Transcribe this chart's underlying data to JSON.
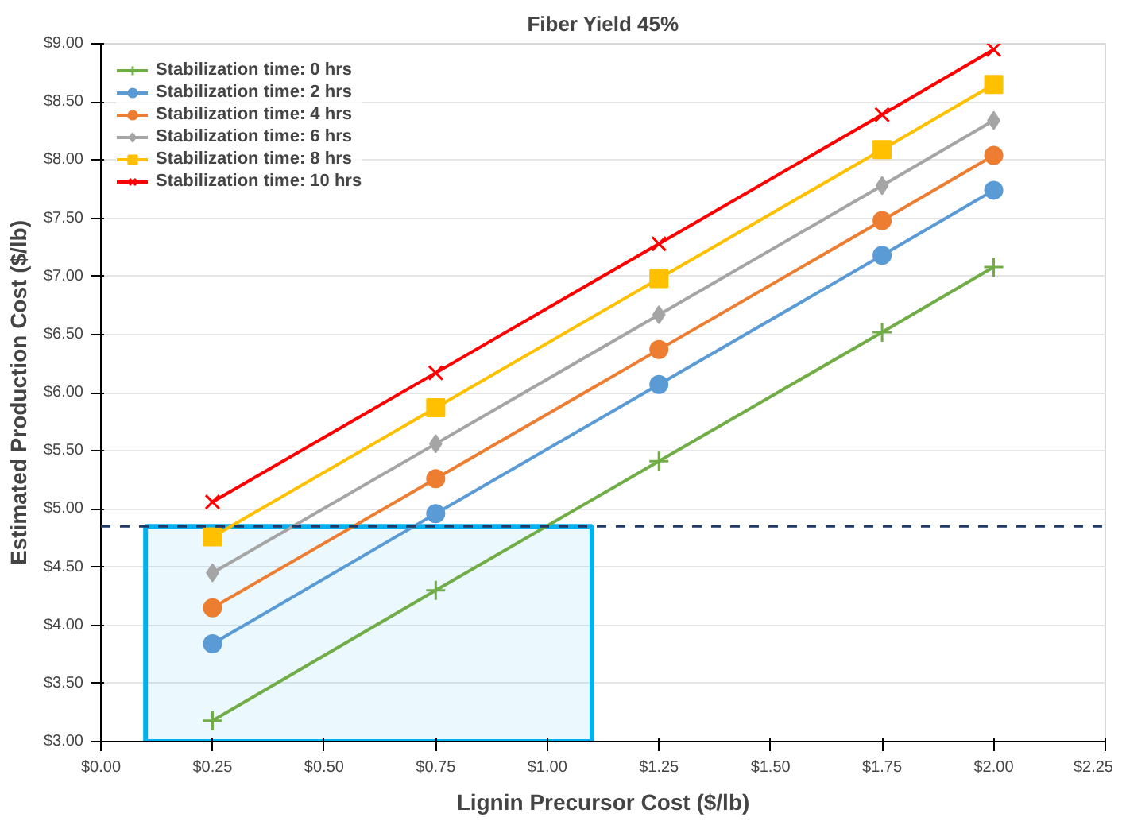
{
  "chart_data": {
    "type": "line",
    "title": "Fiber Yield 45%",
    "xlabel": "Lignin Precursor Cost ($/lb)",
    "ylabel": "Estimated Production Cost ($/lb)",
    "x": [
      0.25,
      0.75,
      1.25,
      1.75,
      2.0
    ],
    "series": [
      {
        "name": "Stabilization time: 0 hrs",
        "color": "#70ad47",
        "marker": "cross",
        "values": [
          3.18,
          4.3,
          5.41,
          6.52,
          7.08
        ]
      },
      {
        "name": "Stabilization time: 2 hrs",
        "color": "#5b9bd5",
        "marker": "circle",
        "values": [
          3.84,
          4.96,
          6.07,
          7.18,
          7.74
        ]
      },
      {
        "name": "Stabilization time: 4 hrs",
        "color": "#ed7d31",
        "marker": "circle",
        "values": [
          4.15,
          5.26,
          6.37,
          7.48,
          8.04
        ]
      },
      {
        "name": "Stabilization time: 6 hrs",
        "color": "#a5a5a5",
        "marker": "diamond",
        "values": [
          4.45,
          5.56,
          6.67,
          7.78,
          8.34
        ]
      },
      {
        "name": "Stabilization time: 8 hrs",
        "color": "#ffc000",
        "marker": "square",
        "values": [
          4.76,
          5.87,
          6.98,
          8.09,
          8.65
        ]
      },
      {
        "name": "Stabilization time: 10 hrs",
        "color": "#ff0000",
        "marker": "x",
        "values": [
          5.06,
          6.17,
          7.28,
          8.39,
          8.95
        ]
      }
    ],
    "xlim": [
      0,
      2.25
    ],
    "ylim": [
      3,
      9
    ],
    "xticks": [
      {
        "value": 0,
        "label": "$0.00"
      },
      {
        "value": 0.25,
        "label": "$0.25"
      },
      {
        "value": 0.5,
        "label": "$0.50"
      },
      {
        "value": 0.75,
        "label": "$0.75"
      },
      {
        "value": 1.0,
        "label": "$1.00"
      },
      {
        "value": 1.25,
        "label": "$1.25"
      },
      {
        "value": 1.5,
        "label": "$1.50"
      },
      {
        "value": 1.75,
        "label": "$1.75"
      },
      {
        "value": 2.0,
        "label": "$2.00"
      },
      {
        "value": 2.25,
        "label": "$2.25"
      }
    ],
    "yticks": [
      {
        "value": 3,
        "label": "$3.00"
      },
      {
        "value": 3.5,
        "label": "$3.50"
      },
      {
        "value": 4,
        "label": "$4.00"
      },
      {
        "value": 4.5,
        "label": "$4.50"
      },
      {
        "value": 5,
        "label": "$5.00"
      },
      {
        "value": 5.5,
        "label": "$5.50"
      },
      {
        "value": 6,
        "label": "$6.00"
      },
      {
        "value": 6.5,
        "label": "$6.50"
      },
      {
        "value": 7,
        "label": "$7.00"
      },
      {
        "value": 7.5,
        "label": "$7.50"
      },
      {
        "value": 8,
        "label": "$8.00"
      },
      {
        "value": 8.5,
        "label": "$8.50"
      },
      {
        "value": 9,
        "label": "$9.00"
      }
    ],
    "ref_lines": [
      {
        "axis": "y",
        "value": 4.85,
        "color": "#1f3864",
        "line_style": "dashed"
      }
    ],
    "bands": [
      {
        "axis": "x",
        "from": 0.1,
        "to": 1.1,
        "color": "#00b0f0"
      }
    ],
    "grid": "y",
    "legend": "top left"
  }
}
